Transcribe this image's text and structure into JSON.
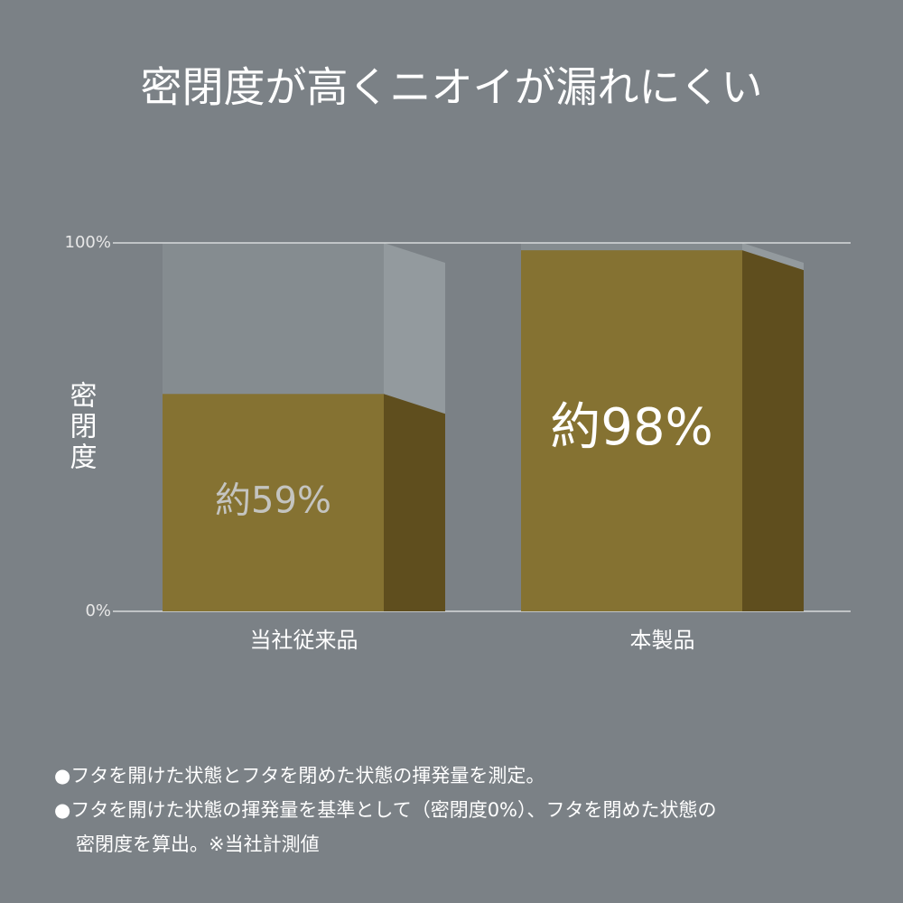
{
  "chart_data": {
    "type": "bar",
    "title": "密閉度が高くニオイが漏れにくい",
    "y_label": "密閉度",
    "categories": [
      "当社従来品",
      "本製品"
    ],
    "values": [
      59,
      98
    ],
    "value_labels": [
      "約59%",
      "約98%"
    ],
    "color": "#857232",
    "ylim": [
      0,
      100
    ],
    "yticks": [
      {
        "value": 0,
        "label": "0%"
      },
      {
        "value": 100,
        "label": "100%"
      }
    ],
    "grid": true,
    "notes": [
      "●フタを開けた状態とフタを閉めた状態の揮発量を測定。",
      "●フタを開けた状態の揮発量を基準として（密閉度0%）、フタを閉めた状態の",
      "密閉度を算出。※当社計測値"
    ]
  }
}
